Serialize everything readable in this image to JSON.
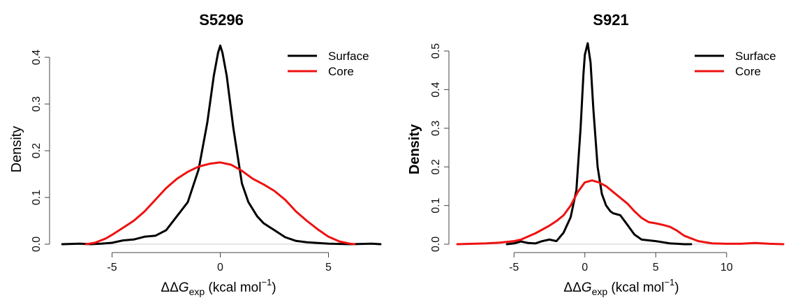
{
  "chart_data": [
    {
      "type": "line",
      "title": "S5296",
      "ylabel": "Density",
      "xlabel_prefix": "ΔΔ",
      "xlabel_var": "G",
      "xlabel_sub": "exp",
      "xlabel_unit": " (kcal mol",
      "xlabel_sup": "−1",
      "xlabel_close": ")",
      "xlim": [
        -7.5,
        7.5
      ],
      "ylim": [
        0,
        0.43
      ],
      "xticks": [
        -5,
        0,
        5
      ],
      "yticks": [
        0.0,
        0.1,
        0.2,
        0.3,
        0.4
      ],
      "ytick_labels": [
        "0.0",
        "0.1",
        "0.2",
        "0.3",
        "0.4"
      ],
      "ylabel_bold": false,
      "legend_position": "top-right",
      "series": [
        {
          "name": "Surface",
          "color": "#000000",
          "x": [
            -7.3,
            -6.5,
            -6.0,
            -5.5,
            -5.0,
            -4.5,
            -4.0,
            -3.5,
            -3.0,
            -2.5,
            -2.0,
            -1.5,
            -1.0,
            -0.6,
            -0.3,
            -0.1,
            0.0,
            0.1,
            0.3,
            0.6,
            1.0,
            1.3,
            1.7,
            2.0,
            2.5,
            3.0,
            3.5,
            4.0,
            5.0,
            6.0,
            7.0,
            7.4
          ],
          "y": [
            0.0,
            0.001,
            0.0,
            0.001,
            0.003,
            0.008,
            0.01,
            0.016,
            0.018,
            0.03,
            0.06,
            0.09,
            0.16,
            0.26,
            0.36,
            0.41,
            0.425,
            0.41,
            0.36,
            0.25,
            0.13,
            0.09,
            0.06,
            0.045,
            0.03,
            0.015,
            0.007,
            0.004,
            0.001,
            0.0,
            0.001,
            0.0
          ]
        },
        {
          "name": "Core",
          "color": "#ee1111",
          "x": [
            -6.2,
            -5.8,
            -5.3,
            -5.0,
            -4.5,
            -4.0,
            -3.5,
            -3.0,
            -2.5,
            -2.0,
            -1.5,
            -1.0,
            -0.5,
            0.0,
            0.5,
            1.0,
            1.5,
            2.0,
            2.5,
            3.0,
            3.5,
            4.0,
            4.5,
            5.0,
            5.5,
            6.0,
            6.2
          ],
          "y": [
            0.0,
            0.003,
            0.012,
            0.02,
            0.035,
            0.05,
            0.07,
            0.095,
            0.12,
            0.14,
            0.155,
            0.166,
            0.172,
            0.175,
            0.17,
            0.157,
            0.14,
            0.128,
            0.114,
            0.095,
            0.07,
            0.05,
            0.032,
            0.016,
            0.006,
            0.001,
            0.0
          ]
        }
      ]
    },
    {
      "type": "line",
      "title": "S921",
      "ylabel": "Density",
      "xlabel_prefix": "ΔΔ",
      "xlabel_var": "G",
      "xlabel_sub": "exp",
      "xlabel_unit": " (kcal mol",
      "xlabel_sup": "−1",
      "xlabel_close": ")",
      "xlim": [
        -9,
        14
      ],
      "ylim": [
        0,
        0.52
      ],
      "xticks": [
        -5,
        0,
        5,
        10
      ],
      "yticks": [
        0.0,
        0.1,
        0.2,
        0.3,
        0.4,
        0.5
      ],
      "ytick_labels": [
        "0.0",
        "0.1",
        "0.2",
        "0.3",
        "0.4",
        "0.5"
      ],
      "ylabel_bold": true,
      "legend_position": "top-right",
      "series": [
        {
          "name": "Surface",
          "color": "#000000",
          "x": [
            -5.5,
            -5.0,
            -4.5,
            -4.0,
            -3.5,
            -3.0,
            -2.5,
            -2.0,
            -1.5,
            -1.0,
            -0.6,
            -0.3,
            -0.1,
            0.0,
            0.2,
            0.4,
            0.6,
            0.9,
            1.2,
            1.5,
            1.8,
            2.0,
            2.5,
            3.0,
            3.5,
            4.0,
            4.5,
            5.0,
            5.5,
            6.0,
            6.5,
            7.0,
            7.5
          ],
          "y": [
            0.0,
            0.002,
            0.007,
            0.003,
            0.002,
            0.008,
            0.012,
            0.008,
            0.03,
            0.07,
            0.14,
            0.3,
            0.44,
            0.49,
            0.52,
            0.47,
            0.35,
            0.2,
            0.13,
            0.1,
            0.085,
            0.08,
            0.075,
            0.05,
            0.025,
            0.012,
            0.01,
            0.008,
            0.005,
            0.002,
            0.001,
            0.0,
            0.0
          ]
        },
        {
          "name": "Core",
          "color": "#ee1111",
          "x": [
            -9.0,
            -7.0,
            -6.0,
            -5.0,
            -4.5,
            -4.0,
            -3.5,
            -3.0,
            -2.5,
            -2.0,
            -1.5,
            -1.0,
            -0.5,
            0.0,
            0.5,
            1.0,
            1.5,
            2.0,
            2.5,
            3.0,
            3.5,
            4.0,
            4.5,
            5.0,
            5.5,
            6.0,
            6.5,
            7.0,
            8.0,
            9.0,
            10.0,
            11.0,
            12.0,
            13.0,
            14.0
          ],
          "y": [
            0.0,
            0.002,
            0.004,
            0.008,
            0.012,
            0.02,
            0.028,
            0.038,
            0.048,
            0.06,
            0.075,
            0.1,
            0.135,
            0.16,
            0.165,
            0.16,
            0.15,
            0.135,
            0.12,
            0.105,
            0.085,
            0.068,
            0.057,
            0.054,
            0.05,
            0.045,
            0.035,
            0.022,
            0.008,
            0.002,
            0.001,
            0.001,
            0.003,
            0.001,
            0.0
          ]
        }
      ]
    }
  ]
}
